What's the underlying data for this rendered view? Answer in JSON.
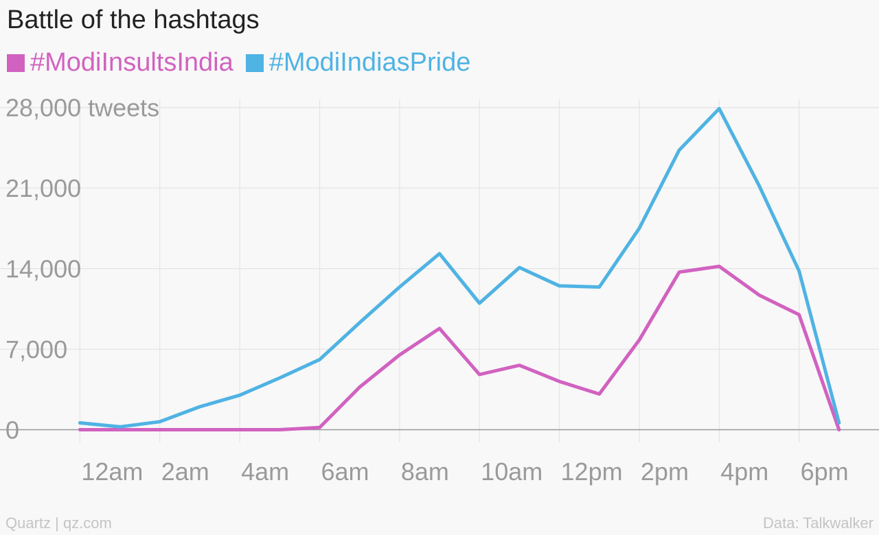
{
  "title": "Battle of the hashtags",
  "footer": {
    "source_left": "Quartz | qz.com",
    "source_right": "Data: Talkwalker"
  },
  "colors": {
    "series1": "#d162c0",
    "series2": "#4fb3e3",
    "grid": "#e4e4e4",
    "axis_text": "#9a9a9a",
    "baseline": "#999999"
  },
  "chart_data": {
    "type": "line",
    "title": "Battle of the hashtags",
    "x_tick_labels": [
      "12am",
      "2am",
      "4am",
      "6am",
      "8am",
      "10am",
      "12pm",
      "2pm",
      "4pm",
      "6pm"
    ],
    "x_ticks": [
      0,
      2,
      4,
      6,
      8,
      10,
      12,
      14,
      16,
      18
    ],
    "xlim": [
      -2,
      20
    ],
    "y_ticks": [
      0,
      7000,
      14000,
      21000,
      28000
    ],
    "y_tick_labels": [
      "0",
      "7,000",
      "14,000",
      "21,000",
      "28,000 tweets"
    ],
    "ylim": [
      -1100,
      28700
    ],
    "grid": true,
    "legend_position": "top-left",
    "x": [
      0,
      1,
      2,
      3,
      4,
      5,
      6,
      7,
      8,
      9,
      10,
      11,
      12,
      13,
      14,
      15,
      16,
      17,
      18,
      19
    ],
    "series": [
      {
        "name": "#ModiInsultsIndia",
        "color": "#d162c0",
        "values": [
          0,
          0,
          0,
          0,
          0,
          0,
          200,
          3700,
          6500,
          8800,
          4800,
          5600,
          4200,
          3100,
          7800,
          13700,
          14200,
          11700,
          10000,
          0
        ]
      },
      {
        "name": "#ModiIndiasPride",
        "color": "#4fb3e3",
        "values": [
          600,
          250,
          700,
          2000,
          3000,
          4500,
          6100,
          9300,
          12400,
          15300,
          11000,
          14100,
          12500,
          12400,
          17500,
          24300,
          27900,
          21200,
          13800,
          600
        ]
      }
    ]
  }
}
